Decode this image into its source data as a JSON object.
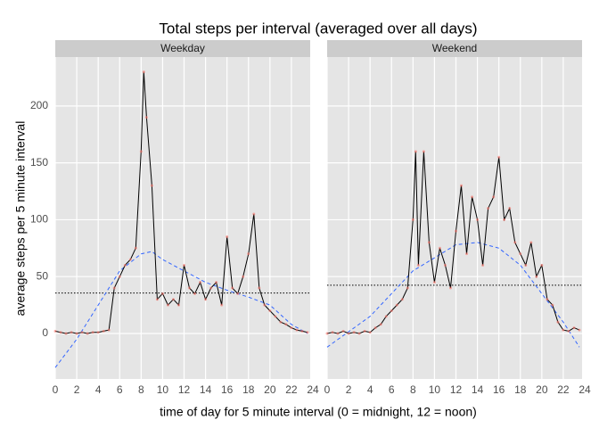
{
  "chart_data": {
    "type": "line",
    "title": "Total steps per interval (averaged over all days)",
    "xlabel": "time of day for 5 minute interval (0 = midnight, 12 = noon)",
    "ylabel": "average steps per 5 minute interval",
    "xlim": [
      0,
      23.75
    ],
    "ylim": [
      -40,
      243
    ],
    "xticks": [
      0,
      2,
      4,
      6,
      8,
      10,
      12,
      14,
      16,
      18,
      20,
      22,
      24
    ],
    "yticks": [
      0,
      50,
      100,
      150,
      200
    ],
    "grid": true,
    "line_color": "#000000",
    "point_color": "#f8766d",
    "smooth_color": "#3366ff",
    "mean_color": "#000000",
    "facets": [
      {
        "name": "Weekday",
        "x": [
          0,
          0.5,
          1,
          1.5,
          2,
          2.5,
          3,
          3.5,
          4,
          4.5,
          5,
          5.5,
          6,
          6.5,
          7,
          7.5,
          8,
          8.25,
          8.5,
          9,
          9.5,
          10,
          10.5,
          11,
          11.5,
          12,
          12.5,
          13,
          13.5,
          14,
          14.5,
          15,
          15.5,
          16,
          16.5,
          17,
          17.5,
          18,
          18.5,
          19,
          19.5,
          20,
          20.5,
          21,
          21.5,
          22,
          22.5,
          23,
          23.5
        ],
        "values": [
          2,
          1,
          0,
          1,
          0,
          1,
          0,
          1,
          1,
          2,
          3,
          40,
          50,
          60,
          65,
          75,
          160,
          230,
          190,
          130,
          30,
          35,
          25,
          30,
          25,
          60,
          40,
          35,
          45,
          30,
          40,
          45,
          25,
          85,
          40,
          35,
          50,
          70,
          105,
          40,
          25,
          20,
          15,
          10,
          8,
          5,
          3,
          2,
          1
        ],
        "mean": 35.6,
        "smooth_x": [
          0,
          2,
          4,
          6,
          8,
          9,
          10,
          12,
          14,
          16,
          18,
          20,
          22,
          23.5
        ],
        "smooth_values": [
          -30,
          -5,
          25,
          55,
          70,
          72,
          65,
          55,
          45,
          38,
          32,
          25,
          8,
          0
        ]
      },
      {
        "name": "Weekend",
        "x": [
          0,
          0.5,
          1,
          1.5,
          2,
          2.5,
          3,
          3.5,
          4,
          4.5,
          5,
          5.5,
          6,
          6.5,
          7,
          7.5,
          8,
          8.25,
          8.5,
          9,
          9.5,
          10,
          10.5,
          11,
          11.5,
          12,
          12.5,
          13,
          13.5,
          14,
          14.5,
          15,
          15.5,
          16,
          16.5,
          17,
          17.5,
          18,
          18.5,
          19,
          19.5,
          20,
          20.5,
          21,
          21.5,
          22,
          22.5,
          23,
          23.5
        ],
        "values": [
          0,
          1,
          0,
          2,
          0,
          1,
          0,
          2,
          1,
          5,
          8,
          15,
          20,
          25,
          30,
          40,
          100,
          160,
          60,
          160,
          80,
          45,
          75,
          60,
          40,
          90,
          130,
          70,
          120,
          100,
          60,
          110,
          120,
          155,
          100,
          110,
          80,
          70,
          60,
          80,
          50,
          60,
          30,
          25,
          10,
          3,
          2,
          5,
          3
        ],
        "mean": 42.4,
        "smooth_x": [
          0,
          4,
          8,
          12,
          14,
          16,
          18,
          20,
          22,
          23.5
        ],
        "smooth_values": [
          -12,
          15,
          55,
          78,
          80,
          75,
          60,
          35,
          10,
          -12
        ]
      }
    ]
  }
}
